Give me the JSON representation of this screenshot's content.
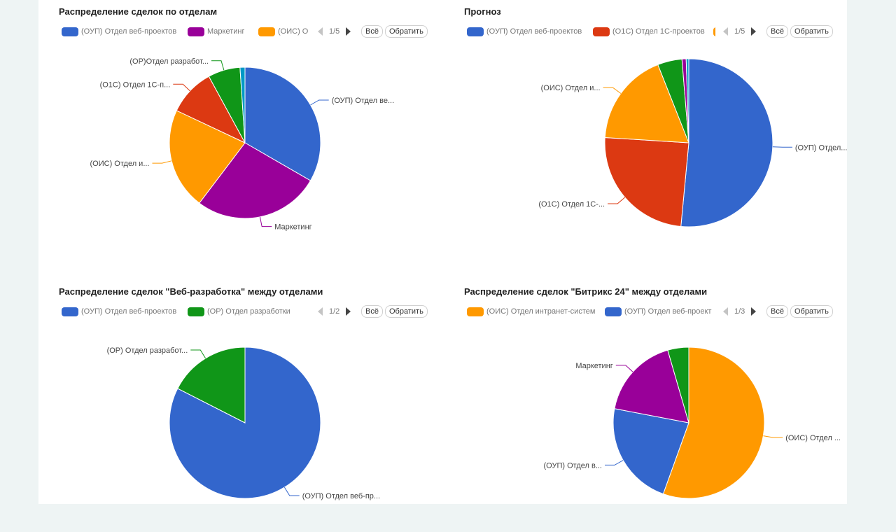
{
  "controls": {
    "all_label": "Всё",
    "invert_label": "Обратить"
  },
  "panels": [
    {
      "title": "Распределение сделок по отделам",
      "legend": [
        {
          "label": "(ОУП) Отдел веб-проектов",
          "color": "#3366cc"
        },
        {
          "label": "Маркетинг",
          "color": "#990099"
        },
        {
          "label": "(ОИС) О",
          "color": "#ff9900"
        }
      ],
      "pager": "1/5"
    },
    {
      "title": "Прогноз",
      "legend": [
        {
          "label": "(ОУП) Отдел веб-проектов",
          "color": "#3366cc"
        },
        {
          "label": "(О1С) Отдел 1С-проектов",
          "color": "#dc3912"
        },
        {
          "label": "",
          "color": "#ff9900"
        }
      ],
      "pager": "1/5"
    },
    {
      "title": "Распределение сделок \"Веб-разработка\" между отделами",
      "legend": [
        {
          "label": "(ОУП) Отдел веб-проектов",
          "color": "#3366cc"
        },
        {
          "label": "(ОР) Отдел разработки",
          "color": "#109618"
        }
      ],
      "pager": "1/2"
    },
    {
      "title": "Распределение сделок \"Битрикс 24\" между отделами",
      "legend": [
        {
          "label": "(ОИС) Отдел интранет-систем",
          "color": "#ff9900"
        },
        {
          "label": "(ОУП) Отдел веб-проект",
          "color": "#3366cc"
        }
      ],
      "pager": "1/3"
    }
  ],
  "chart_data": [
    {
      "type": "pie",
      "title": "Распределение сделок по отделам",
      "slices": [
        {
          "label": "(ОУП) Отдел ве...",
          "value": 31.5,
          "color": "#3366cc"
        },
        {
          "label": "Маркетинг",
          "value": 25.5,
          "color": "#990099"
        },
        {
          "label": "(ОИС) Отдел и...",
          "value": 20.5,
          "color": "#ff9900"
        },
        {
          "label": "(О1С) Отдел 1С-п...",
          "value": 9.5,
          "color": "#dc3912"
        },
        {
          "label": "(ОР)Отдел разработ...",
          "value": 6.5,
          "color": "#109618"
        },
        {
          "label": "",
          "value": 1.0,
          "color": "#0099c6"
        }
      ]
    },
    {
      "type": "pie",
      "title": "Прогноз",
      "slices": [
        {
          "label": "(ОУП) Отдел...",
          "value": 51.5,
          "color": "#3366cc"
        },
        {
          "label": "(О1С) Отдел 1С-...",
          "value": 24.5,
          "color": "#dc3912"
        },
        {
          "label": "(ОИС) Отдел и...",
          "value": 18.0,
          "color": "#ff9900"
        },
        {
          "label": "",
          "value": 4.7,
          "color": "#109618"
        },
        {
          "label": "",
          "value": 0.8,
          "color": "#990099"
        },
        {
          "label": "",
          "value": 0.5,
          "color": "#0099c6"
        }
      ]
    },
    {
      "type": "pie",
      "title": "Распределение сделок \"Веб-разработка\" между отделами",
      "slices": [
        {
          "label": "(ОУП) Отдел веб-пр...",
          "value": 82.5,
          "color": "#3366cc"
        },
        {
          "label": "(ОР) Отдел разработ...",
          "value": 17.5,
          "color": "#109618"
        }
      ]
    },
    {
      "type": "pie",
      "title": "Распределение сделок \"Битрикс 24\" между отделами",
      "slices": [
        {
          "label": "(ОИС) Отдел ...",
          "value": 55.5,
          "color": "#ff9900"
        },
        {
          "label": "(ОУП) Отдел в...",
          "value": 22.5,
          "color": "#3366cc"
        },
        {
          "label": "Маркетинг",
          "value": 17.5,
          "color": "#990099"
        },
        {
          "label": "",
          "value": 4.5,
          "color": "#109618"
        }
      ]
    }
  ]
}
